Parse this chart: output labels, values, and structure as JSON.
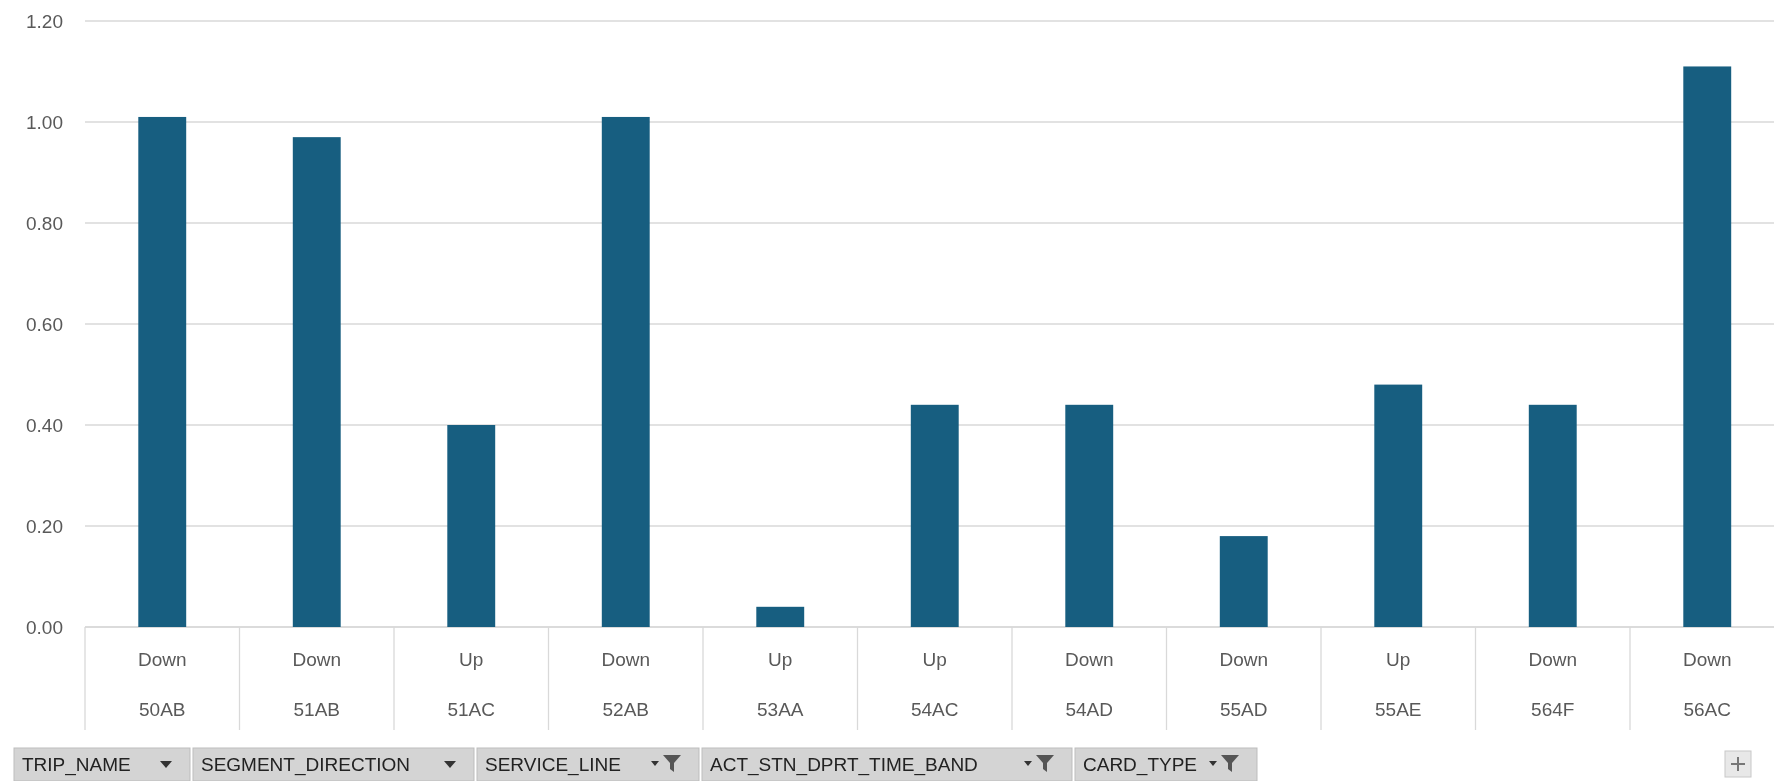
{
  "chart_data": {
    "type": "bar",
    "categories": [
      "Down\n50AB",
      "Down\n51AB",
      "Up\n51AC",
      "Down\n52AB",
      "Up\n53AA",
      "Up\n54AC",
      "Down\n54AD",
      "Down\n55AD",
      "Up\n55AE",
      "Down\n564F",
      "Down\n56AC"
    ],
    "values": [
      1.01,
      0.97,
      0.4,
      1.01,
      0.04,
      0.44,
      0.44,
      0.18,
      0.48,
      0.44,
      1.11
    ],
    "color": "#175e80",
    "ylim": [
      0,
      1.2
    ],
    "yticks": [
      {
        "value": 0,
        "label": "0.00"
      },
      {
        "value": 0.2,
        "label": "0.20"
      },
      {
        "value": 0.4,
        "label": "0.40"
      },
      {
        "value": 0.6,
        "label": "0.60"
      },
      {
        "value": 0.8,
        "label": "0.80"
      },
      {
        "value": 1,
        "label": "1.00"
      },
      {
        "value": 1.2,
        "label": "1.20"
      }
    ],
    "grid": "y",
    "annotations": [
      "TRIP_NAME",
      "SEGMENT_DIRECTION",
      "SERVICE_LINE",
      "ACT_STN_DPRT_TIME_BAND",
      "CARD_TYPE"
    ]
  }
}
